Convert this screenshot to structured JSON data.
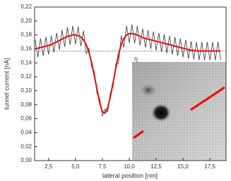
{
  "chart_data": {
    "type": "line",
    "xlabel": "lateral position [nm]",
    "ylabel": "tunnel current [nA]",
    "annotation": "η",
    "reference_line": 0.157,
    "xlim": [
      1.2,
      19.0
    ],
    "ylim": [
      0,
      0.22
    ],
    "xticks": [
      {
        "value": 2.5,
        "label": "2,5"
      },
      {
        "value": 5,
        "label": "5,0"
      },
      {
        "value": 7.5,
        "label": "7,5"
      },
      {
        "value": 10,
        "label": "10,0"
      },
      {
        "value": 12.5,
        "label": "12,5"
      },
      {
        "value": 15,
        "label": "15,0"
      },
      {
        "value": 17.5,
        "label": "17,5"
      }
    ],
    "yticks": [
      {
        "value": 0,
        "label": "0,00"
      },
      {
        "value": 0.02,
        "label": "0,02"
      },
      {
        "value": 0.04,
        "label": "0,04"
      },
      {
        "value": 0.06,
        "label": "0,06"
      },
      {
        "value": 0.08,
        "label": "0,08"
      },
      {
        "value": 0.1,
        "label": "0,10"
      },
      {
        "value": 0.12,
        "label": "0,12"
      },
      {
        "value": 0.14,
        "label": "0,14"
      },
      {
        "value": 0.16,
        "label": "0,16"
      },
      {
        "value": 0.18,
        "label": "0,18"
      },
      {
        "value": 0.2,
        "label": "0,20"
      },
      {
        "value": 0.22,
        "label": "0,22"
      }
    ],
    "x": [
      1.25,
      1.5,
      1.75,
      2,
      2.25,
      2.5,
      2.75,
      3,
      3.25,
      3.5,
      3.75,
      4,
      4.25,
      4.5,
      4.75,
      5,
      5.25,
      5.5,
      5.75,
      6,
      6.25,
      6.5,
      6.75,
      7,
      7.25,
      7.5,
      7.75,
      8,
      8.25,
      8.5,
      8.75,
      9,
      9.25,
      9.5,
      9.75,
      10,
      10.25,
      10.5,
      10.75,
      11,
      11.25,
      11.5,
      11.75,
      12,
      12.25,
      12.5,
      12.75,
      13,
      13.25,
      13.5,
      13.75,
      14,
      14.25,
      14.5,
      14.75,
      15,
      15.25,
      15.5,
      15.75,
      16,
      16.25,
      16.5,
      16.75,
      17,
      17.25,
      17.5,
      17.75,
      18,
      18.25,
      18.5
    ],
    "series": [
      {
        "color": "#333333",
        "values": [
          0.173,
          0.148,
          0.175,
          0.15,
          0.177,
          0.152,
          0.179,
          0.155,
          0.183,
          0.159,
          0.187,
          0.163,
          0.191,
          0.166,
          0.193,
          0.167,
          0.192,
          0.164,
          0.186,
          0.153,
          0.161,
          0.134,
          0.128,
          0.096,
          0.089,
          0.064,
          0.074,
          0.07,
          0.098,
          0.106,
          0.139,
          0.139,
          0.179,
          0.162,
          0.193,
          0.169,
          0.195,
          0.168,
          0.193,
          0.165,
          0.189,
          0.162,
          0.187,
          0.16,
          0.185,
          0.158,
          0.183,
          0.156,
          0.181,
          0.154,
          0.179,
          0.152,
          0.177,
          0.15,
          0.175,
          0.148,
          0.173,
          0.146,
          0.171,
          0.145,
          0.17,
          0.144,
          0.17,
          0.144,
          0.17,
          0.144,
          0.17,
          0.144,
          0.17,
          0.144
        ]
      },
      {
        "color": "#dd1111",
        "values": [
          0.16,
          0.161,
          0.162,
          0.163,
          0.164,
          0.165,
          0.166,
          0.168,
          0.17,
          0.172,
          0.174,
          0.176,
          0.178,
          0.179,
          0.18,
          0.18,
          0.179,
          0.177,
          0.173,
          0.166,
          0.155,
          0.14,
          0.122,
          0.102,
          0.083,
          0.07,
          0.068,
          0.076,
          0.092,
          0.112,
          0.133,
          0.152,
          0.166,
          0.175,
          0.18,
          0.182,
          0.182,
          0.181,
          0.18,
          0.178,
          0.176,
          0.175,
          0.174,
          0.173,
          0.172,
          0.171,
          0.17,
          0.169,
          0.168,
          0.167,
          0.166,
          0.165,
          0.164,
          0.163,
          0.162,
          0.161,
          0.16,
          0.159,
          0.158,
          0.158,
          0.157,
          0.157,
          0.157,
          0.157,
          0.157,
          0.157,
          0.157,
          0.157,
          0.157,
          0.157
        ]
      }
    ]
  }
}
